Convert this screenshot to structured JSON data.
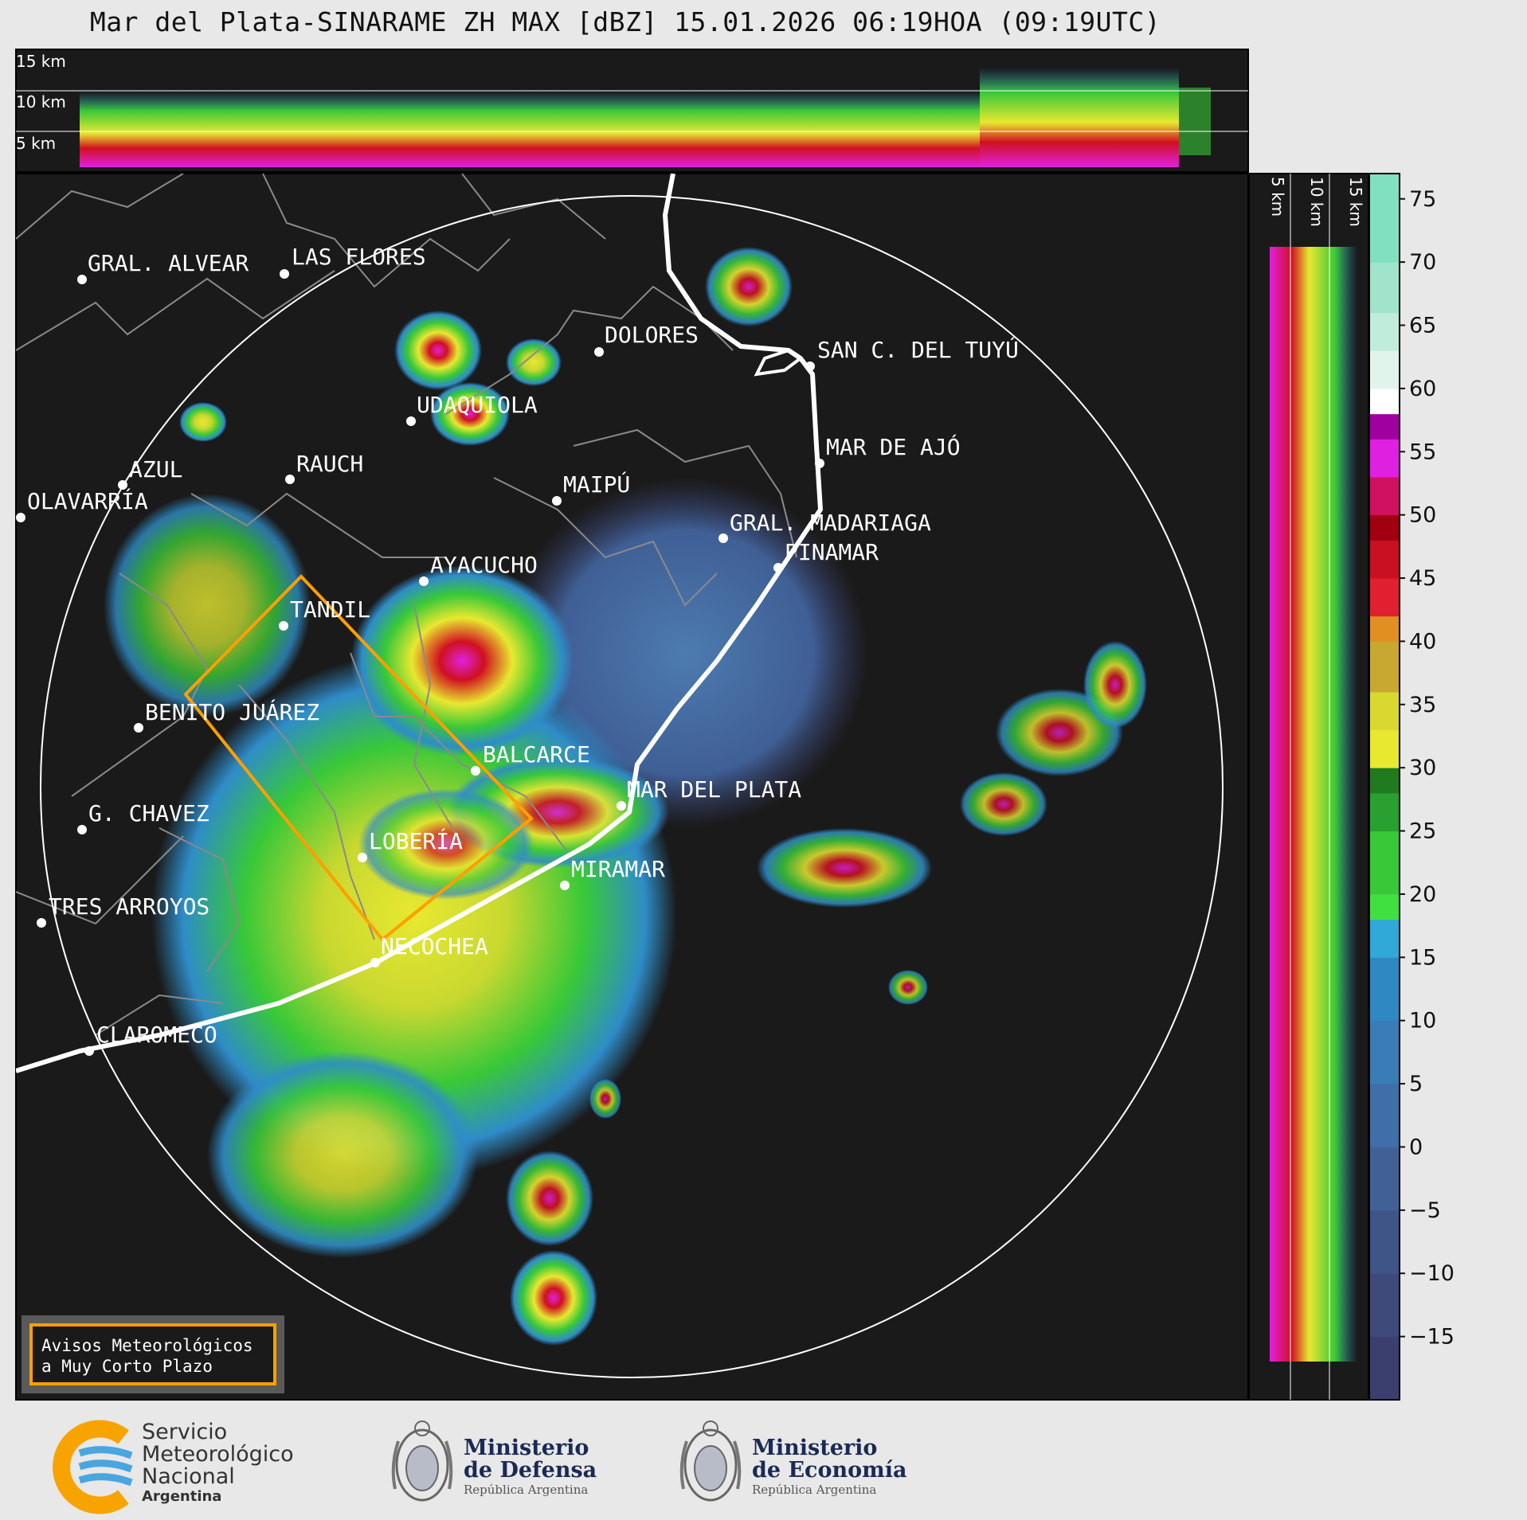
{
  "title": "Mar del Plata-SINARAME ZH MAX [dBZ] 15.01.2026 06:19HOA (09:19UTC)",
  "top_panel": {
    "height_labels": [
      "15 km",
      "10 km",
      "5 km"
    ]
  },
  "right_panel": {
    "height_labels": [
      "5 km",
      "10 km",
      "15 km"
    ]
  },
  "colorbar": {
    "unit": "dBZ",
    "ticks": [
      "75",
      "70",
      "65",
      "60",
      "55",
      "50",
      "45",
      "40",
      "35",
      "30",
      "25",
      "20",
      "15",
      "10",
      "5",
      "0",
      "−5",
      "−10",
      "−15"
    ],
    "tick_values": [
      75,
      70,
      65,
      60,
      55,
      50,
      45,
      40,
      35,
      30,
      25,
      20,
      15,
      10,
      5,
      0,
      -5,
      -10,
      -15
    ],
    "range": [
      -20,
      77
    ],
    "colors": {
      "low": "#3b3f6e",
      "blue": "#2f8cc8",
      "green": "#38c838",
      "yellow": "#e8e830",
      "orange": "#e09020",
      "red": "#d01020",
      "magenta": "#e020e0",
      "white": "#ffffff",
      "mint": "#80e0c0"
    }
  },
  "cities": [
    {
      "name": "GRAL. ALVEAR"
    },
    {
      "name": "LAS FLORES"
    },
    {
      "name": "DOLORES"
    },
    {
      "name": "SAN C. DEL TUYÚ"
    },
    {
      "name": "UDAQUIOLA"
    },
    {
      "name": "MAR DE AJÓ"
    },
    {
      "name": "AZUL"
    },
    {
      "name": "RAUCH"
    },
    {
      "name": "MAIPÚ"
    },
    {
      "name": "OLAVARRÍA"
    },
    {
      "name": "GRAL. MADARIAGA"
    },
    {
      "name": "PINAMAR"
    },
    {
      "name": "AYACUCHO"
    },
    {
      "name": "TANDIL"
    },
    {
      "name": "BENITO JUÁREZ"
    },
    {
      "name": "BALCARCE"
    },
    {
      "name": "MAR DEL PLATA"
    },
    {
      "name": "G. CHAVEZ"
    },
    {
      "name": "LOBERÍA"
    },
    {
      "name": "MIRAMAR"
    },
    {
      "name": "TRES ARROYOS"
    },
    {
      "name": "NECOCHEA"
    },
    {
      "name": "CLAROMECO"
    }
  ],
  "warning_box": {
    "line1": "Avisos Meteorológicos",
    "line2": "a Muy Corto Plazo"
  },
  "footer": {
    "smn": {
      "line1": "Servicio",
      "line2": "Meteorológico",
      "line3": "Nacional",
      "line4": "Argentina"
    },
    "defensa": {
      "line1": "Ministerio",
      "line2": "de Defensa",
      "line3": "República Argentina"
    },
    "economia": {
      "line1": "Ministerio",
      "line2": "de Economía",
      "line3": "República Argentina"
    }
  }
}
